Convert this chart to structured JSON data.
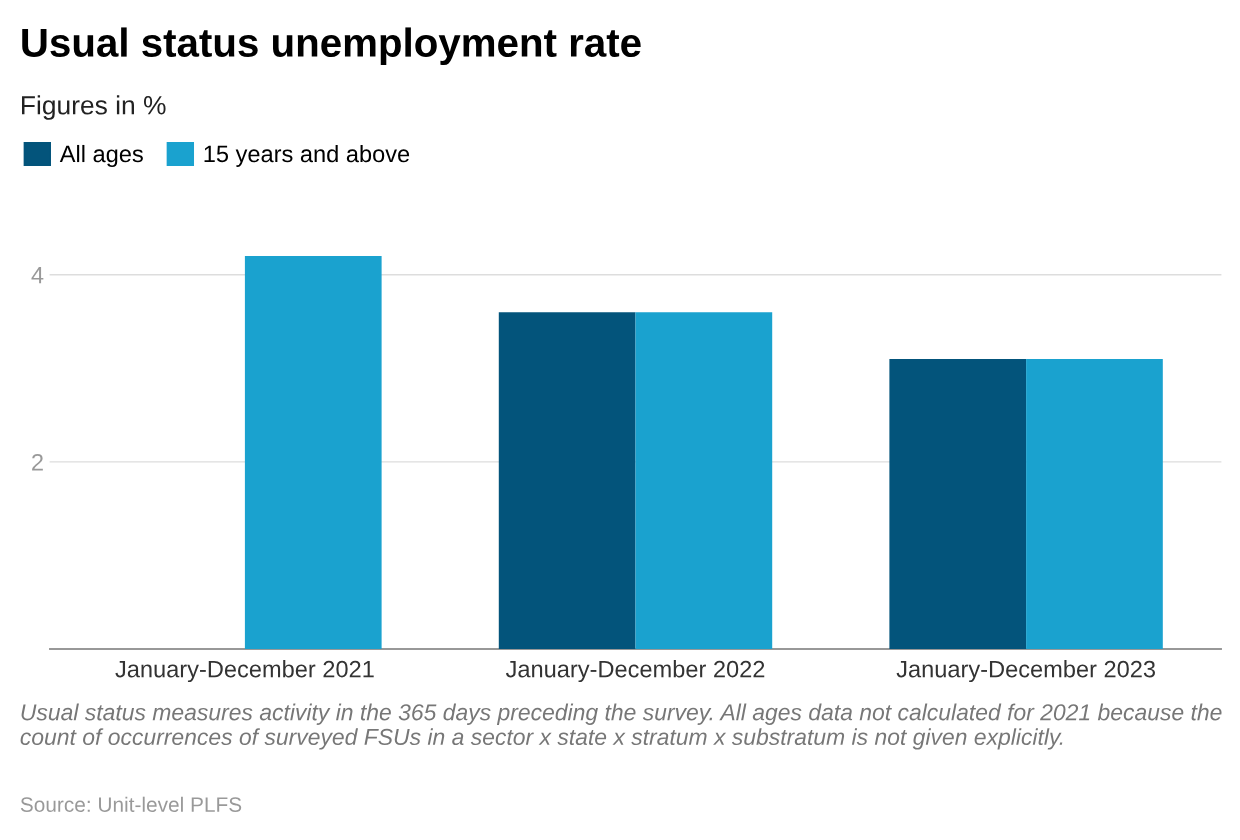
{
  "chart_data": {
    "type": "bar",
    "title": "Usual status unemployment rate",
    "subtitle": "Figures in %",
    "categories": [
      "January-December 2021",
      "January-December 2022",
      "January-December 2023"
    ],
    "series": [
      {
        "name": "All ages",
        "color": "#03547b",
        "values": [
          null,
          3.6,
          3.1
        ]
      },
      {
        "name": "15 years and above",
        "color": "#1aa2cf",
        "values": [
          4.2,
          3.6,
          3.1
        ]
      }
    ],
    "ylim": [
      0,
      4.2
    ],
    "yticks": [
      2,
      4
    ],
    "grid": "y",
    "legend": "top left",
    "annotations": [
      "Usual status measures activity in the 365 days preceding the survey. All ages data not calculated for 2021 because the count of occurrences of surveyed FSUs in a sector x state x stratum x substratum is not given explicitly.",
      "Source: Unit-level PLFS"
    ]
  }
}
